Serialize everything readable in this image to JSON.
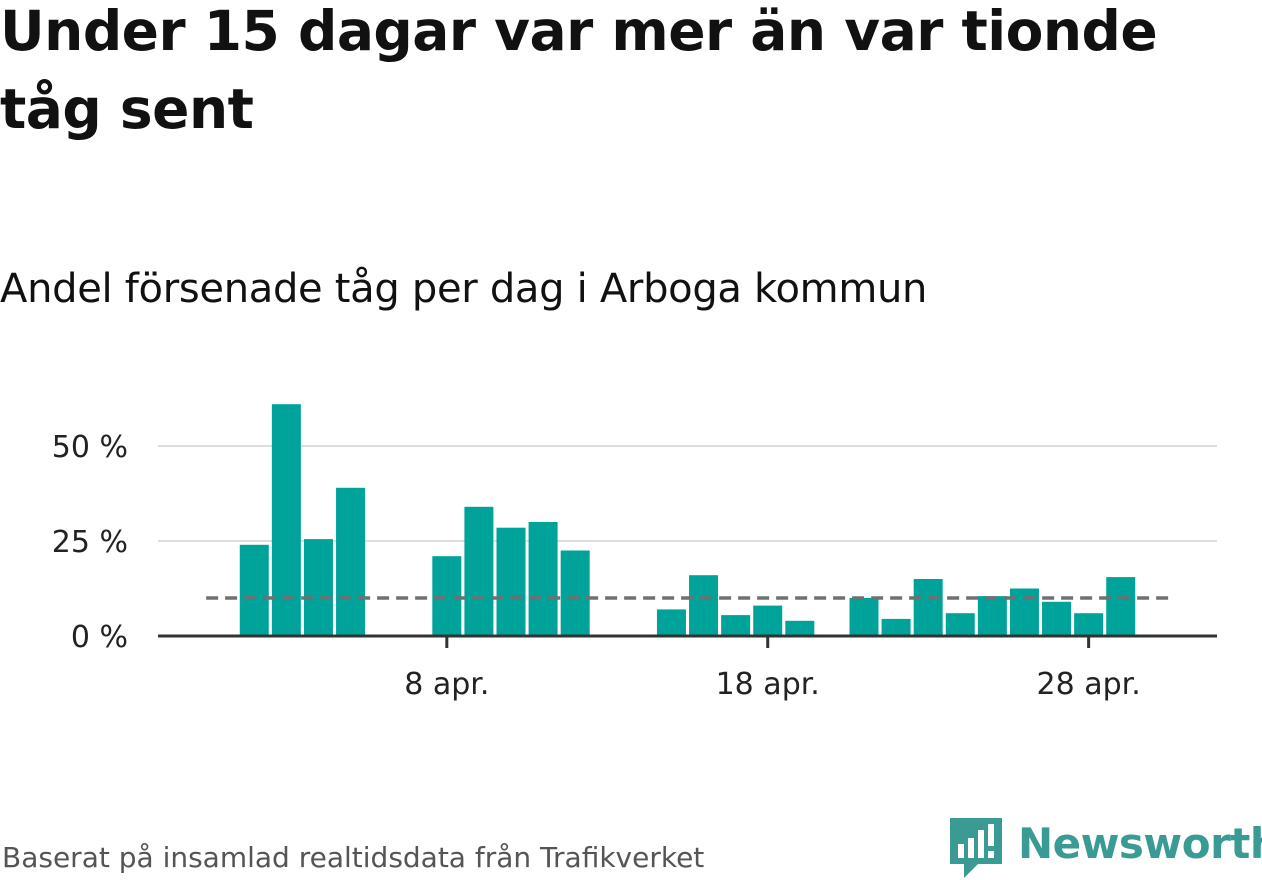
{
  "headline": "Under 15 dagar var mer än var tionde tåg sent",
  "subtitle": "Andel försenade tåg per dag i Arboga kommun",
  "source": "Baserat på insamlad realtidsdata från Trafikverket",
  "brand": {
    "name": "Newsworthy",
    "color": "#3a9a94"
  },
  "colors": {
    "bar": "#00a39a",
    "reference_line": "#707070",
    "gridline": "#dddddd",
    "axis": "#333333"
  },
  "chart_data": {
    "type": "bar",
    "title": "Andel försenade tåg per dag i Arboga kommun",
    "xlabel": "",
    "ylabel": "",
    "x_unit": "day in April",
    "x": [
      2,
      3,
      4,
      5,
      8,
      9,
      10,
      11,
      12,
      15,
      16,
      17,
      18,
      19,
      21,
      22,
      23,
      24,
      25,
      26,
      27,
      28,
      29
    ],
    "values": [
      24,
      61,
      25.5,
      39,
      21,
      34,
      28.5,
      30,
      22.5,
      7,
      16,
      5.5,
      8,
      4,
      10,
      4.5,
      15,
      6,
      10.5,
      12.5,
      9,
      6,
      15.5
    ],
    "ylim": [
      0,
      60
    ],
    "xlim": [
      -1,
      32
    ],
    "y_ticks": [
      {
        "value": 0,
        "label": "0 %"
      },
      {
        "value": 25,
        "label": "25 %"
      },
      {
        "value": 50,
        "label": "50 %"
      }
    ],
    "x_ticks": [
      {
        "value": 8,
        "label": "8 apr."
      },
      {
        "value": 18,
        "label": "18 apr."
      },
      {
        "value": 28,
        "label": "28 apr."
      }
    ],
    "reference_line": {
      "value": 10,
      "style": "dashed",
      "from_day": 0.5,
      "to_day": 30.5
    },
    "grid": true,
    "legend": "none"
  }
}
